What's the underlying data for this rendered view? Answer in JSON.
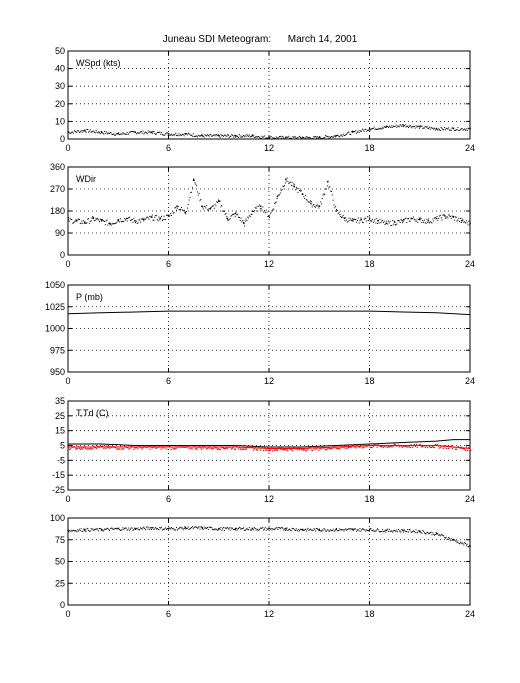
{
  "title": "Juneau SDI Meteogram:      March 14, 2001",
  "chart_data": [
    {
      "type": "scatter",
      "label": "WSpd (kts)",
      "ylim": [
        0,
        50
      ],
      "yticks": [
        0,
        10,
        20,
        30,
        40,
        50
      ],
      "xlim": [
        0,
        24
      ],
      "xticks": [
        0,
        6,
        12,
        18,
        24
      ],
      "grid": true,
      "series": [
        {
          "color": "#000000",
          "x": [
            0,
            1,
            2,
            3,
            4,
            5,
            6,
            7,
            8,
            9,
            10,
            11,
            12,
            13,
            14,
            15,
            16,
            17,
            18,
            19,
            20,
            21,
            22,
            23,
            24
          ],
          "y": [
            4,
            5,
            4,
            3,
            4,
            4,
            3,
            3,
            2,
            2,
            2,
            2,
            1,
            1,
            1,
            1,
            2,
            4,
            6,
            7,
            8,
            7,
            6,
            6,
            6
          ]
        }
      ]
    },
    {
      "type": "scatter",
      "label": "WDir",
      "ylim": [
        0,
        360
      ],
      "yticks": [
        0,
        90,
        180,
        270,
        360
      ],
      "xlim": [
        0,
        24
      ],
      "xticks": [
        0,
        6,
        12,
        18,
        24
      ],
      "grid": true,
      "series": [
        {
          "color": "#000000",
          "x": [
            0,
            0.5,
            1,
            1.5,
            2,
            2.5,
            3,
            3.5,
            4,
            4.5,
            5,
            5.5,
            6,
            6.5,
            7,
            7.5,
            8,
            8.5,
            9,
            9.5,
            10,
            10.5,
            11,
            11.5,
            12,
            12.5,
            13,
            13.5,
            14,
            14.5,
            15,
            15.5,
            16,
            16.5,
            17,
            17.5,
            18,
            18.5,
            19,
            19.5,
            20,
            20.5,
            21,
            21.5,
            22,
            22.5,
            23,
            23.5,
            24
          ],
          "y": [
            145,
            140,
            135,
            150,
            140,
            130,
            145,
            150,
            140,
            145,
            155,
            150,
            160,
            200,
            175,
            310,
            200,
            190,
            220,
            150,
            170,
            130,
            180,
            200,
            160,
            240,
            310,
            280,
            250,
            210,
            200,
            300,
            180,
            150,
            140,
            145,
            150,
            140,
            130,
            135,
            140,
            150,
            145,
            140,
            150,
            160,
            155,
            140,
            130
          ]
        }
      ]
    },
    {
      "type": "line",
      "label": "P (mb)",
      "ylim": [
        950,
        1050
      ],
      "yticks": [
        950,
        975,
        1000,
        1025,
        1050
      ],
      "xlim": [
        0,
        24
      ],
      "xticks": [
        0,
        6,
        12,
        18,
        24
      ],
      "grid": true,
      "series": [
        {
          "color": "#000000",
          "x": [
            0,
            2,
            4,
            6,
            8,
            10,
            12,
            14,
            16,
            18,
            20,
            22,
            24
          ],
          "y": [
            1017,
            1018,
            1019,
            1020,
            1020,
            1020,
            1020,
            1020,
            1020,
            1020,
            1019,
            1018,
            1016
          ]
        }
      ]
    },
    {
      "type": "line",
      "label": "T,Td (C)",
      "ylim": [
        -25,
        35
      ],
      "yticks": [
        -25,
        -15,
        -5,
        5,
        15,
        25,
        35
      ],
      "xlim": [
        0,
        24
      ],
      "xticks": [
        0,
        6,
        12,
        18,
        24
      ],
      "grid": true,
      "series": [
        {
          "color": "#000000",
          "x": [
            0,
            2,
            4,
            6,
            8,
            10,
            12,
            14,
            16,
            18,
            20,
            22,
            23,
            24
          ],
          "y": [
            6,
            6,
            5,
            5,
            5,
            5,
            4,
            4,
            5,
            6,
            7,
            8,
            9,
            9
          ]
        },
        {
          "color": "#ff0000",
          "x": [
            0,
            2,
            4,
            6,
            8,
            10,
            12,
            14,
            16,
            18,
            20,
            22,
            23,
            24
          ],
          "y": [
            4,
            4,
            4,
            4,
            4,
            4,
            3,
            3,
            4,
            5,
            5,
            5,
            4,
            3
          ]
        }
      ]
    },
    {
      "type": "scatter",
      "label": "",
      "ylim": [
        0,
        100
      ],
      "yticks": [
        0,
        25,
        50,
        75,
        100
      ],
      "xlim": [
        0,
        24
      ],
      "xticks": [
        0,
        6,
        12,
        18,
        24
      ],
      "grid": true,
      "series": [
        {
          "color": "#000000",
          "x": [
            0,
            1,
            2,
            3,
            4,
            5,
            6,
            7,
            8,
            9,
            10,
            11,
            12,
            13,
            14,
            15,
            16,
            17,
            18,
            19,
            20,
            21,
            22,
            23,
            24
          ],
          "y": [
            86,
            87,
            87,
            88,
            88,
            89,
            88,
            89,
            89,
            88,
            88,
            88,
            88,
            88,
            87,
            87,
            87,
            87,
            87,
            86,
            86,
            85,
            82,
            75,
            68
          ]
        }
      ]
    }
  ]
}
